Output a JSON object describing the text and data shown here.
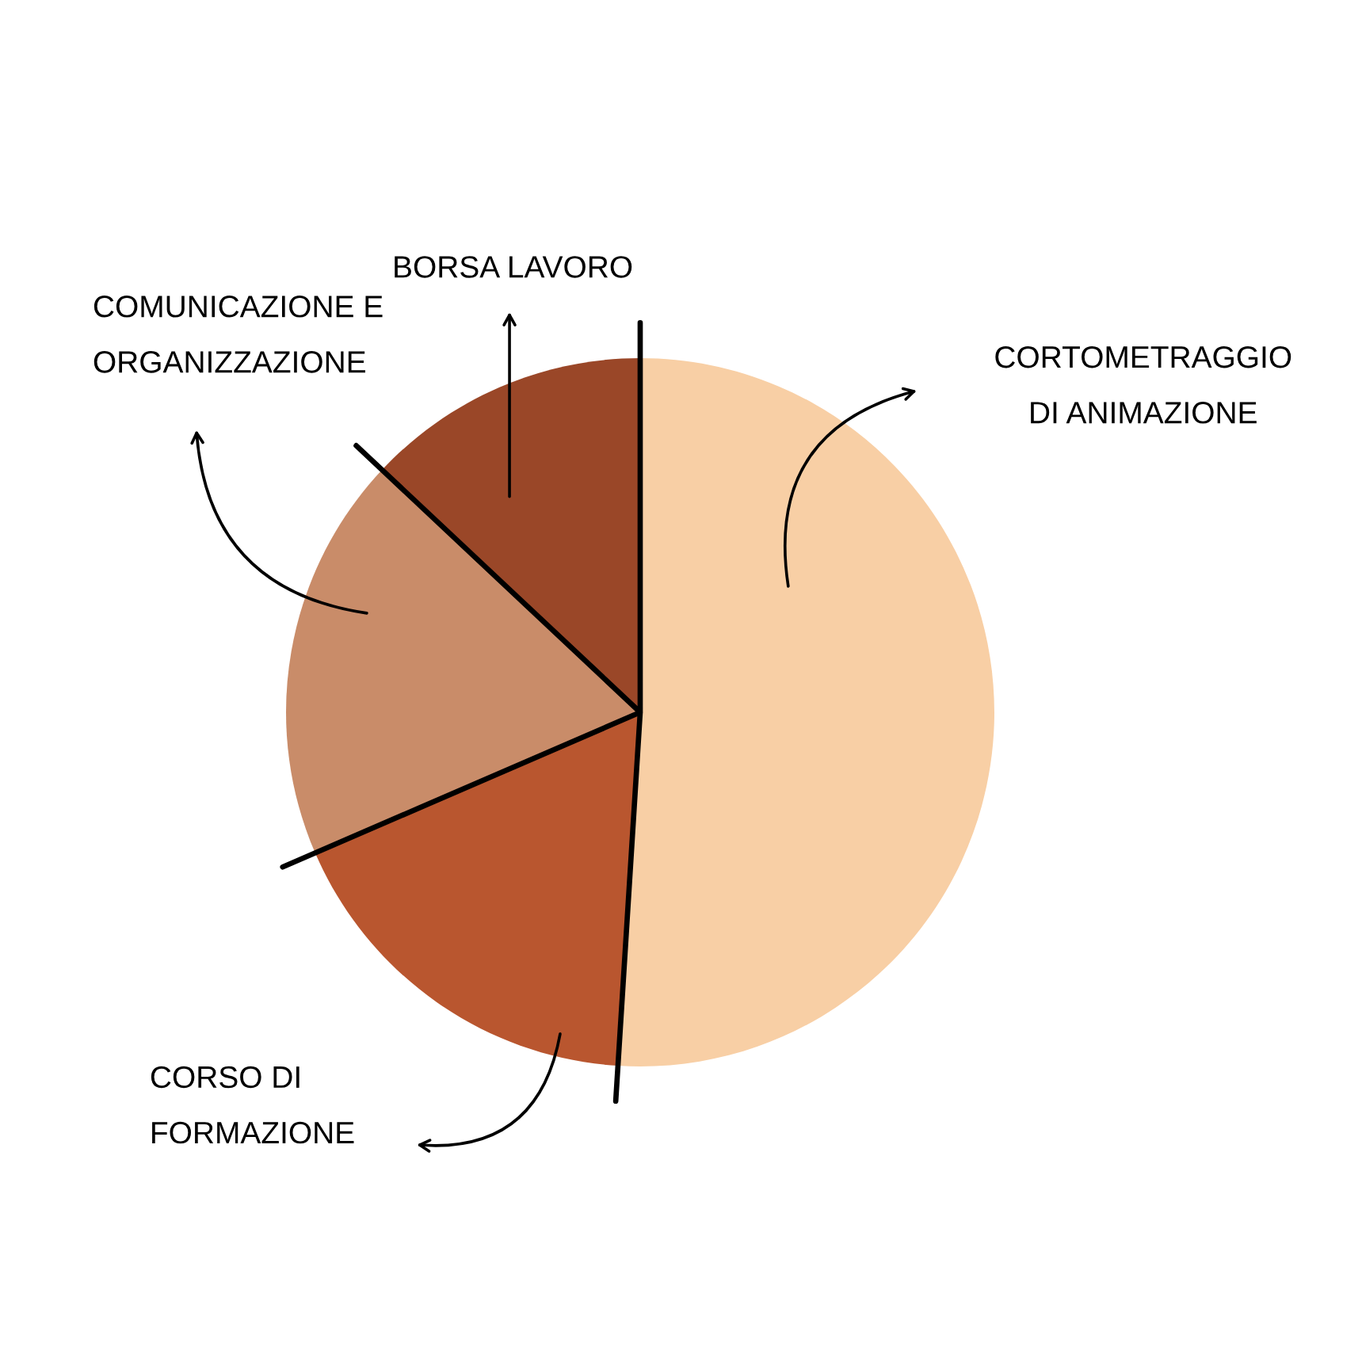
{
  "chart_data": {
    "type": "pie",
    "categories": [
      "CORTOMETRAGGIO DI ANIMAZIONE",
      "CORSO DI FORMAZIONE",
      "COMUNICAZIONE E ORGANIZZAZIONE",
      "BORSA LAVORO"
    ],
    "values": [
      51,
      17.5,
      18.5,
      13
    ],
    "colors": [
      "#f8cfa5",
      "#b9562f",
      "#c98c69",
      "#9a4728"
    ]
  }
}
